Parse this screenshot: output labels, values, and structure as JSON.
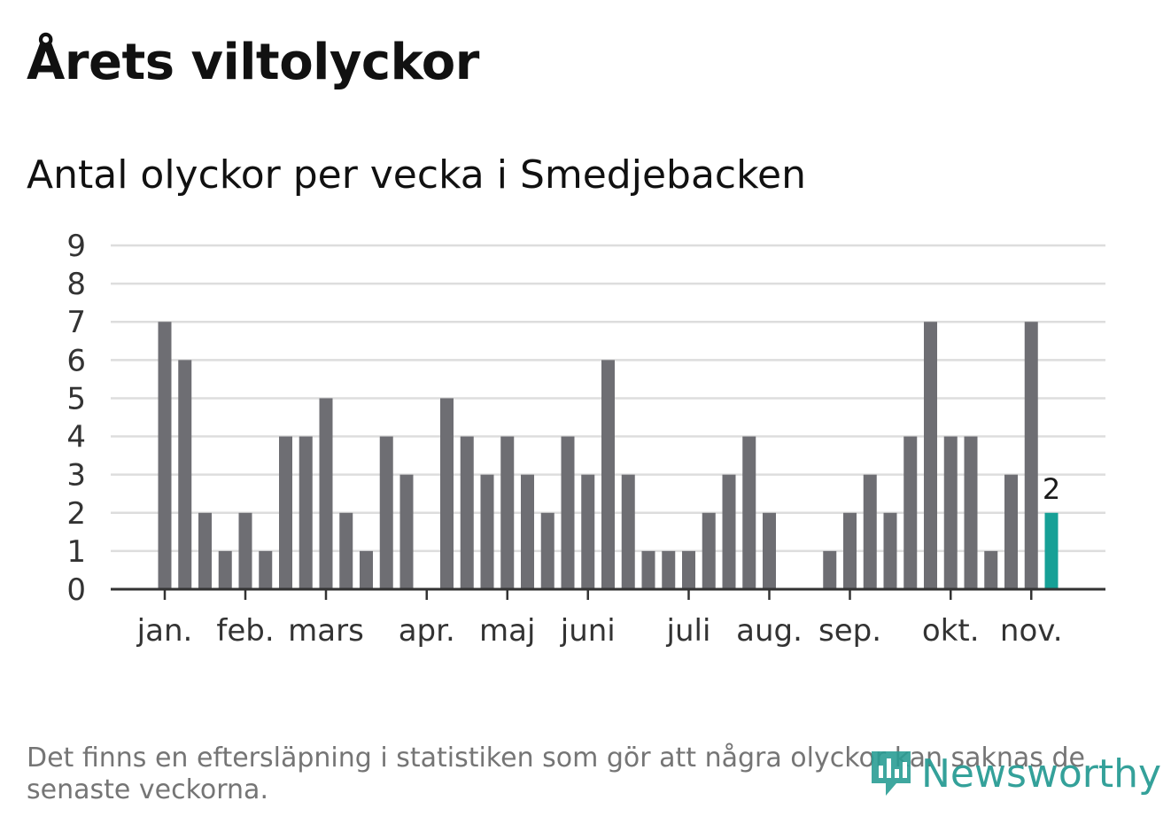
{
  "title": "Årets viltolyckor",
  "chart_data": {
    "type": "bar",
    "title": "Antal olyckor per vecka i Smedjebacken",
    "xlabel": "",
    "ylabel": "",
    "ylim": [
      0,
      9
    ],
    "yticks": [
      0,
      1,
      2,
      3,
      4,
      5,
      6,
      7,
      8,
      9
    ],
    "grid": true,
    "values": [
      7,
      6,
      2,
      1,
      2,
      1,
      4,
      4,
      5,
      2,
      1,
      4,
      3,
      0,
      5,
      4,
      3,
      4,
      3,
      2,
      4,
      3,
      6,
      3,
      1,
      1,
      1,
      2,
      3,
      4,
      2,
      0,
      0,
      1,
      2,
      3,
      2,
      4,
      7,
      4,
      4,
      1,
      3,
      7,
      2
    ],
    "month_labels": [
      {
        "label": "jan.",
        "week": 0
      },
      {
        "label": "feb.",
        "week": 4
      },
      {
        "label": "mars",
        "week": 8
      },
      {
        "label": "apr.",
        "week": 13
      },
      {
        "label": "maj",
        "week": 17
      },
      {
        "label": "juni",
        "week": 21
      },
      {
        "label": "juli",
        "week": 26
      },
      {
        "label": "aug.",
        "week": 30
      },
      {
        "label": "sep.",
        "week": 34
      },
      {
        "label": "okt.",
        "week": 39
      },
      {
        "label": "nov.",
        "week": 43
      }
    ],
    "highlight_index": 44,
    "highlight_label": "2",
    "bar_color": "#6e6e73",
    "highlight_color": "#16a096"
  },
  "footnote": "Det finns en eftersläpning i statistiken som gör att några olyckor kan saknas de senaste veckorna.",
  "brand": {
    "name": "Newsworthy",
    "icon": "newsworthy-logo-icon",
    "color": "#2a9d95"
  }
}
